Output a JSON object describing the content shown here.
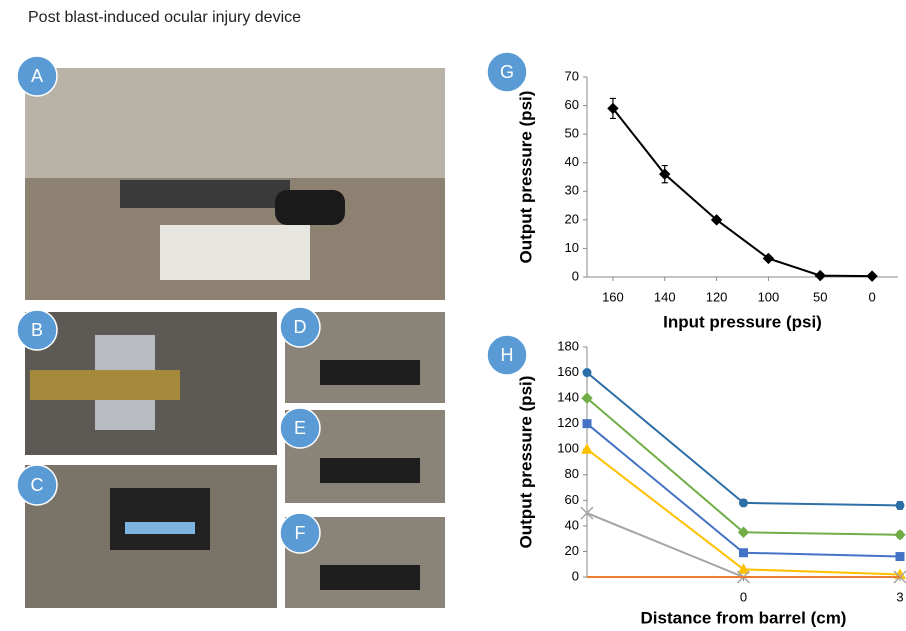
{
  "figure": {
    "title": "Post blast-induced ocular injury device",
    "panel_labels": [
      "A",
      "B",
      "C",
      "D",
      "E",
      "F",
      "G",
      "H"
    ]
  },
  "chart_data": [
    {
      "type": "line",
      "categories": [
        "160",
        "140",
        "120",
        "100",
        "50",
        "0"
      ],
      "series": [
        {
          "color": "#000000",
          "marker": "diamond",
          "values": [
            59,
            36,
            20,
            6.5,
            0.5,
            0.3
          ],
          "errors": [
            3.5,
            3,
            null,
            null,
            null,
            null
          ]
        }
      ],
      "ylim": [
        0,
        70
      ],
      "yticks": [
        0,
        10,
        20,
        30,
        40,
        50,
        60,
        70
      ],
      "y_label": "Output pressure (psi)",
      "x_label": "Input pressure (psi)"
    },
    {
      "type": "line",
      "categories": [
        null,
        "0",
        "3"
      ],
      "series": [
        {
          "color": "#2e6fa8",
          "marker": "circle",
          "values": [
            160,
            58,
            56
          ],
          "errors": [
            null,
            2.5,
            3
          ]
        },
        {
          "color": "#70ad47",
          "marker": "diamond",
          "values": [
            140,
            35,
            33
          ],
          "errors": [
            null,
            2,
            2.5
          ]
        },
        {
          "color": "#4472c4",
          "marker": "square",
          "values": [
            120,
            19,
            16
          ],
          "errors": [
            null,
            null,
            null
          ]
        },
        {
          "color": "#ffc000",
          "marker": "triangle",
          "values": [
            100,
            6,
            2
          ],
          "errors": [
            null,
            null,
            null
          ]
        },
        {
          "color": "#a5a5a5",
          "marker": "x",
          "values": [
            50,
            0,
            0
          ],
          "errors": [
            null,
            null,
            null
          ]
        },
        {
          "color": "#ed7d31",
          "marker": "none",
          "values": [
            0,
            0,
            0
          ],
          "errors": [
            null,
            null,
            null
          ]
        }
      ],
      "ylim": [
        0,
        180
      ],
      "yticks": [
        0,
        20,
        40,
        60,
        80,
        100,
        120,
        140,
        160,
        180
      ],
      "y_label": "Output pressure (psi)",
      "x_label": "Distance  from barrel (cm)"
    }
  ]
}
